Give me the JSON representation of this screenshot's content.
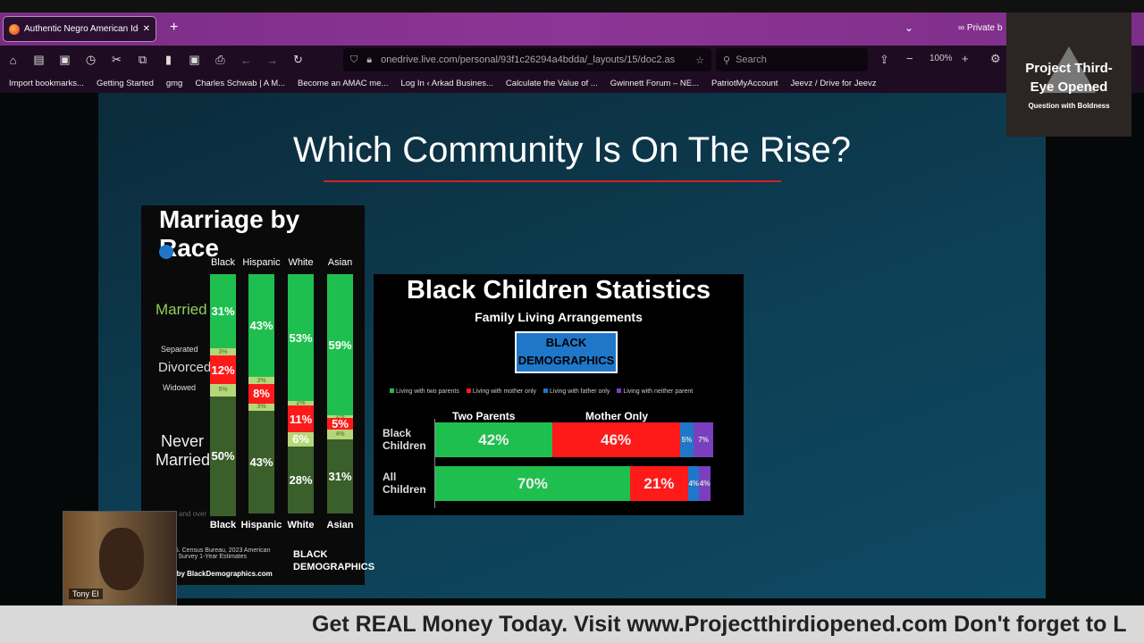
{
  "browser": {
    "tab_title": "Authentic Negro American Iden",
    "new_tab": "+",
    "private_label": "Private b",
    "url": "onedrive.live.com/personal/93f1c26294a4bdda/_layouts/15/doc2.as",
    "search_placeholder": "Search",
    "zoom": "100%",
    "bookmarks": [
      "Import bookmarks...",
      "Getting Started",
      "gmg",
      "Charles Schwab | A M...",
      "Become an AMAC me...",
      "Log In ‹ Arkad Busines...",
      "Calculate the Value of ...",
      "Gwinnett Forum – NE...",
      "PatriotMyAccount",
      "Jeevz / Drive for Jeevz"
    ]
  },
  "overlay": {
    "title": "Project Third-Eye Opened",
    "subtitle": "Question with Boldness"
  },
  "slide": {
    "title": "Which Community Is On The Rise?"
  },
  "chart_data": [
    {
      "type": "bar",
      "stacked": true,
      "title": "Marriage by Race",
      "brand": "BLACK DEMOGRAPHICS",
      "categories": [
        "Black",
        "Hispanic",
        "White",
        "Asian"
      ],
      "series": [
        {
          "name": "Married",
          "values": [
            31,
            43,
            53,
            59
          ],
          "color": "#1fbf4f"
        },
        {
          "name": "Separated",
          "values": [
            3,
            3,
            2,
            1
          ],
          "color": "#b5d77a"
        },
        {
          "name": "Divorced",
          "values": [
            12,
            8,
            11,
            5
          ],
          "color": "#ff1a1a"
        },
        {
          "name": "Widowed",
          "values": [
            5,
            3,
            6,
            4
          ],
          "color": "#b5d77a"
        },
        {
          "name": "Never Married",
          "values": [
            50,
            43,
            28,
            31
          ],
          "color": "#3a5f2a"
        }
      ],
      "row_labels": {
        "married": "Married",
        "separated": "Separated",
        "divorced": "Divorced",
        "widowed": "Widowed",
        "never": "Never Married"
      },
      "source": "Source: U.S. Census Bureau, 2023 American Community Survey 1-Year Estimates",
      "powered": "Powered by BlackDemographics.com",
      "footnote": "and over"
    },
    {
      "type": "bar",
      "stacked": true,
      "orientation": "horizontal",
      "title": "Black Children Statistics",
      "subtitle": "Family Living Arrangements",
      "brand": "BLACK DEMOGRAPHICS",
      "categories": [
        "Black Children",
        "All Children"
      ],
      "column_labels": [
        "Two Parents",
        "Mother Only"
      ],
      "series": [
        {
          "name": "Living with two parents",
          "values": [
            42,
            70
          ],
          "color": "#1fbf4f"
        },
        {
          "name": "Living with mother only",
          "values": [
            46,
            21
          ],
          "color": "#ff1a1a"
        },
        {
          "name": "Living with father only",
          "values": [
            5,
            4
          ],
          "color": "#1f77c9"
        },
        {
          "name": "Living with neither parent",
          "values": [
            7,
            4
          ],
          "color": "#7a3fbf"
        }
      ]
    }
  ],
  "webcam": {
    "name": "Tony El"
  },
  "ticker": "Get REAL Money Today. Visit www.Projectthirdiopened.com Don't forget to L"
}
